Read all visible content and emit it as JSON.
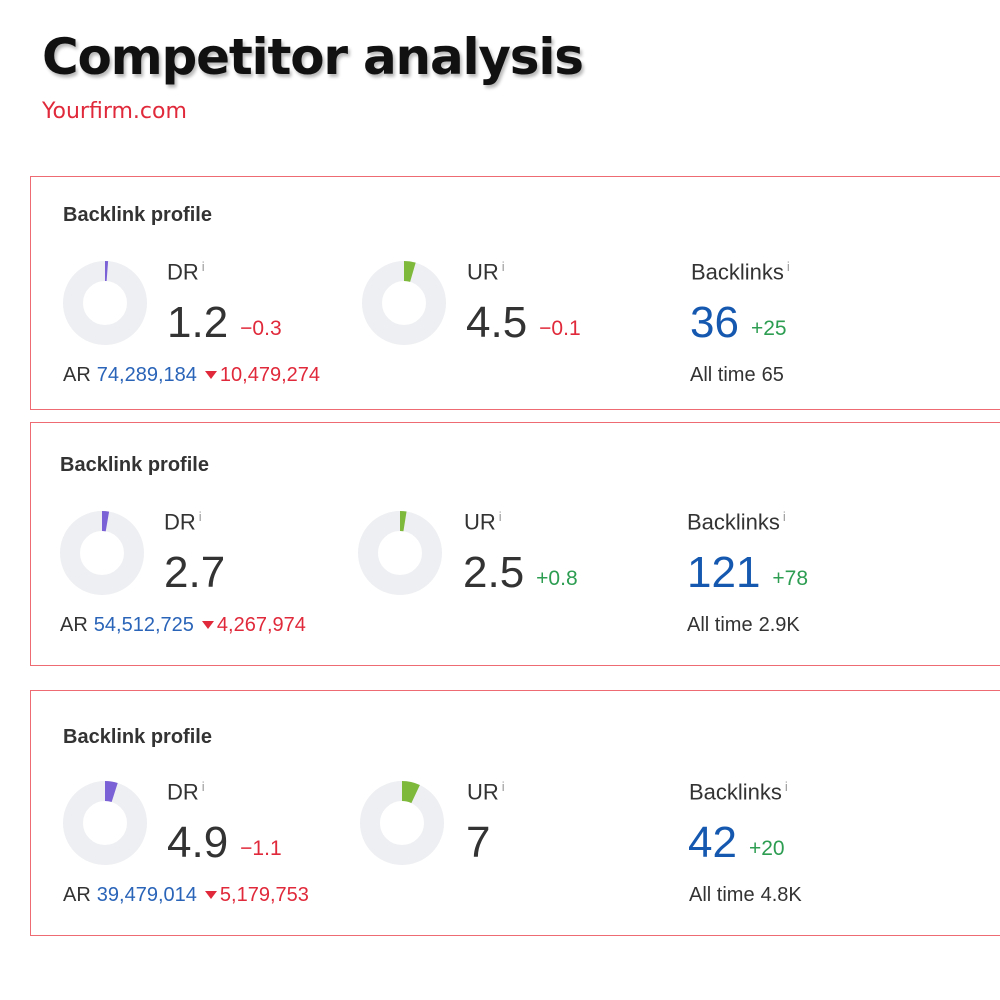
{
  "header": {
    "title": "Competitor analysis",
    "subtitle": "Yourfirm.com"
  },
  "colors": {
    "title": "#111111",
    "subtitle": "#e0293a",
    "card_border": "#ef6b74",
    "negative": "#e0293a",
    "positive": "#2d9d52",
    "backlinks_value": "#1558b0",
    "dr_indicator": "#7b61d6",
    "ur_indicator": "#7fb93c",
    "donut_track": "#eeeff2"
  },
  "cards": [
    {
      "title": "Backlink profile",
      "dr": {
        "label": "DR",
        "info": "i",
        "value": "1.2",
        "delta": "−0.3",
        "delta_kind": "neg",
        "gauge": 1.2
      },
      "ur": {
        "label": "UR",
        "info": "i",
        "value": "4.5",
        "delta": "−0.1",
        "delta_kind": "neg",
        "gauge": 4.5
      },
      "backlinks": {
        "label": "Backlinks",
        "info": "i",
        "value": "36",
        "delta": "+25",
        "delta_kind": "pos"
      },
      "ar": {
        "label": "AR",
        "value": "74,289,184",
        "change": "10,479,274"
      },
      "all_time": {
        "label": "All time",
        "value": "65"
      }
    },
    {
      "title": "Backlink profile",
      "dr": {
        "label": "DR",
        "info": "i",
        "value": "2.7",
        "delta": "",
        "delta_kind": "neg",
        "gauge": 2.7
      },
      "ur": {
        "label": "UR",
        "info": "i",
        "value": "2.5",
        "delta": "+0.8",
        "delta_kind": "pos",
        "gauge": 2.5
      },
      "backlinks": {
        "label": "Backlinks",
        "info": "i",
        "value": "121",
        "delta": "+78",
        "delta_kind": "pos"
      },
      "ar": {
        "label": "AR",
        "value": "54,512,725",
        "change": "4,267,974"
      },
      "all_time": {
        "label": "All time",
        "value": "2.9K"
      }
    },
    {
      "title": "Backlink profile",
      "dr": {
        "label": "DR",
        "info": "i",
        "value": "4.9",
        "delta": "−1.1",
        "delta_kind": "neg",
        "gauge": 4.9
      },
      "ur": {
        "label": "UR",
        "info": "i",
        "value": "7",
        "delta": "",
        "delta_kind": "neg",
        "gauge": 7
      },
      "backlinks": {
        "label": "Backlinks",
        "info": "i",
        "value": "42",
        "delta": "+20",
        "delta_kind": "pos"
      },
      "ar": {
        "label": "AR",
        "value": "39,479,014",
        "change": "5,179,753"
      },
      "all_time": {
        "label": "All time",
        "value": "4.8K"
      }
    }
  ]
}
